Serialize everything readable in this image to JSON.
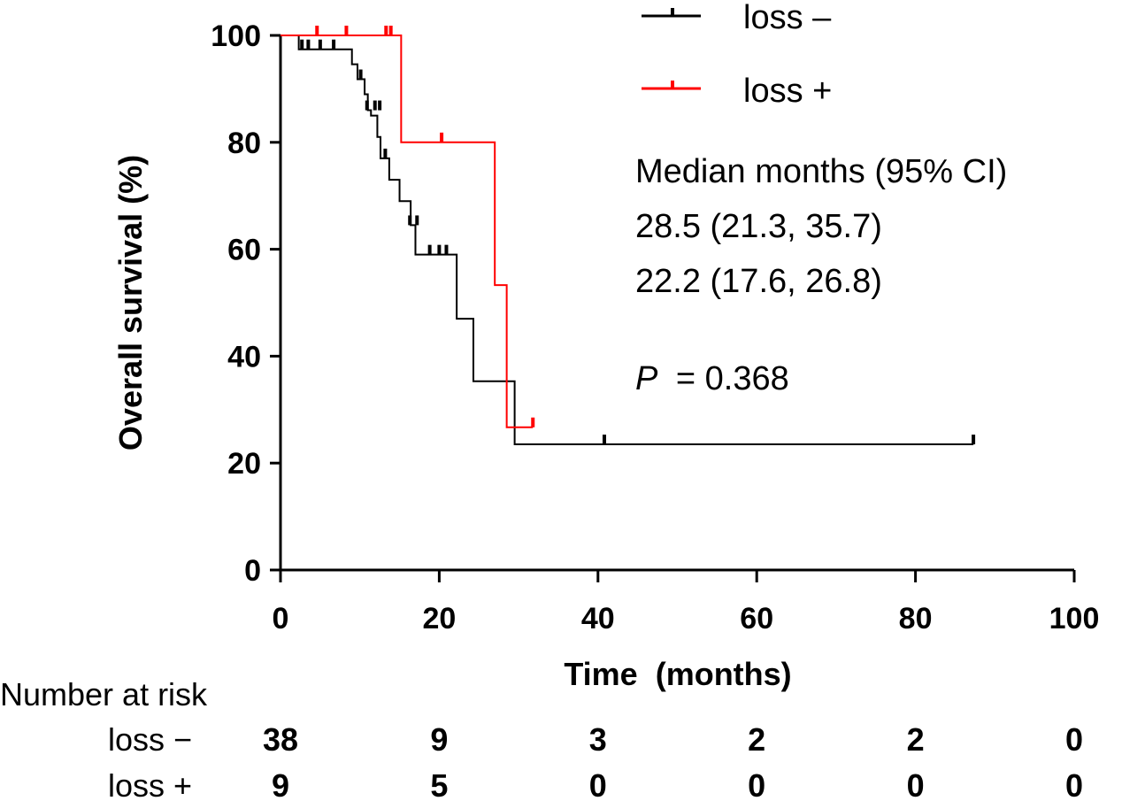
{
  "chart_data": {
    "type": "line",
    "subtype": "kaplan-meier",
    "ylabel": "Overall survival (%)",
    "xlabel": "Time  (months)",
    "xlim": [
      0,
      100
    ],
    "ylim": [
      0,
      100
    ],
    "xticks": [
      0,
      20,
      40,
      60,
      80,
      100
    ],
    "yticks": [
      0,
      20,
      40,
      60,
      80,
      100
    ],
    "xtick_labels": [
      "0",
      "20",
      "40",
      "60",
      "80",
      "100"
    ],
    "ytick_labels": [
      "0",
      "20",
      "40",
      "60",
      "80",
      "100"
    ],
    "legend_placement": "top-right",
    "series": [
      {
        "name": "loss −",
        "legend_label": "loss –",
        "color": "#000000",
        "steps": [
          [
            0,
            100
          ],
          [
            2.3,
            97.4
          ],
          [
            9.0,
            94.6
          ],
          [
            9.7,
            91.8
          ],
          [
            10.6,
            89.0
          ],
          [
            11.0,
            86.0
          ],
          [
            11.4,
            85.0
          ],
          [
            12.2,
            81.0
          ],
          [
            12.6,
            77.0
          ],
          [
            13.7,
            73.0
          ],
          [
            15.0,
            69.0
          ],
          [
            16.4,
            64.5
          ],
          [
            17.0,
            59.0
          ],
          [
            22.2,
            47.0
          ],
          [
            24.3,
            35.3
          ],
          [
            29.5,
            23.5
          ],
          [
            87.3,
            23.5
          ]
        ],
        "censored": [
          [
            2.7,
            97.4
          ],
          [
            3.5,
            97.4
          ],
          [
            5.0,
            97.4
          ],
          [
            6.7,
            97.4
          ],
          [
            10.1,
            91.8
          ],
          [
            10.9,
            86.0
          ],
          [
            11.9,
            86.0
          ],
          [
            12.5,
            86.0
          ],
          [
            13.2,
            77.0
          ],
          [
            16.3,
            64.5
          ],
          [
            17.2,
            64.5
          ],
          [
            18.8,
            59.0
          ],
          [
            20.0,
            59.0
          ],
          [
            20.9,
            59.0
          ],
          [
            40.8,
            23.5
          ],
          [
            87.3,
            23.5
          ]
        ]
      },
      {
        "name": "loss +",
        "legend_label": "loss +",
        "color": "#ff0000",
        "steps": [
          [
            0,
            100
          ],
          [
            15.2,
            80.0
          ],
          [
            27.0,
            53.3
          ],
          [
            28.5,
            26.7
          ],
          [
            31.8,
            26.7
          ]
        ],
        "censored": [
          [
            4.6,
            100
          ],
          [
            8.3,
            100
          ],
          [
            13.3,
            100
          ],
          [
            13.9,
            100
          ],
          [
            20.3,
            80.0
          ],
          [
            31.8,
            26.7
          ]
        ]
      }
    ],
    "annotations": {
      "median_header": "Median months (95% CI)",
      "median_rows": [
        "28.5 (21.3, 35.7)",
        "22.2 (17.6, 26.8)"
      ],
      "p_label": "P",
      "p_value": "= 0.368"
    },
    "risk_table": {
      "title": "Number at risk",
      "times": [
        0,
        20,
        40,
        60,
        80,
        100
      ],
      "rows": [
        {
          "label": "loss −",
          "values": [
            "38",
            "9",
            "3",
            "2",
            "2",
            "0"
          ]
        },
        {
          "label": "loss +",
          "values": [
            "9",
            "5",
            "0",
            "0",
            "0",
            "0"
          ]
        }
      ]
    }
  }
}
